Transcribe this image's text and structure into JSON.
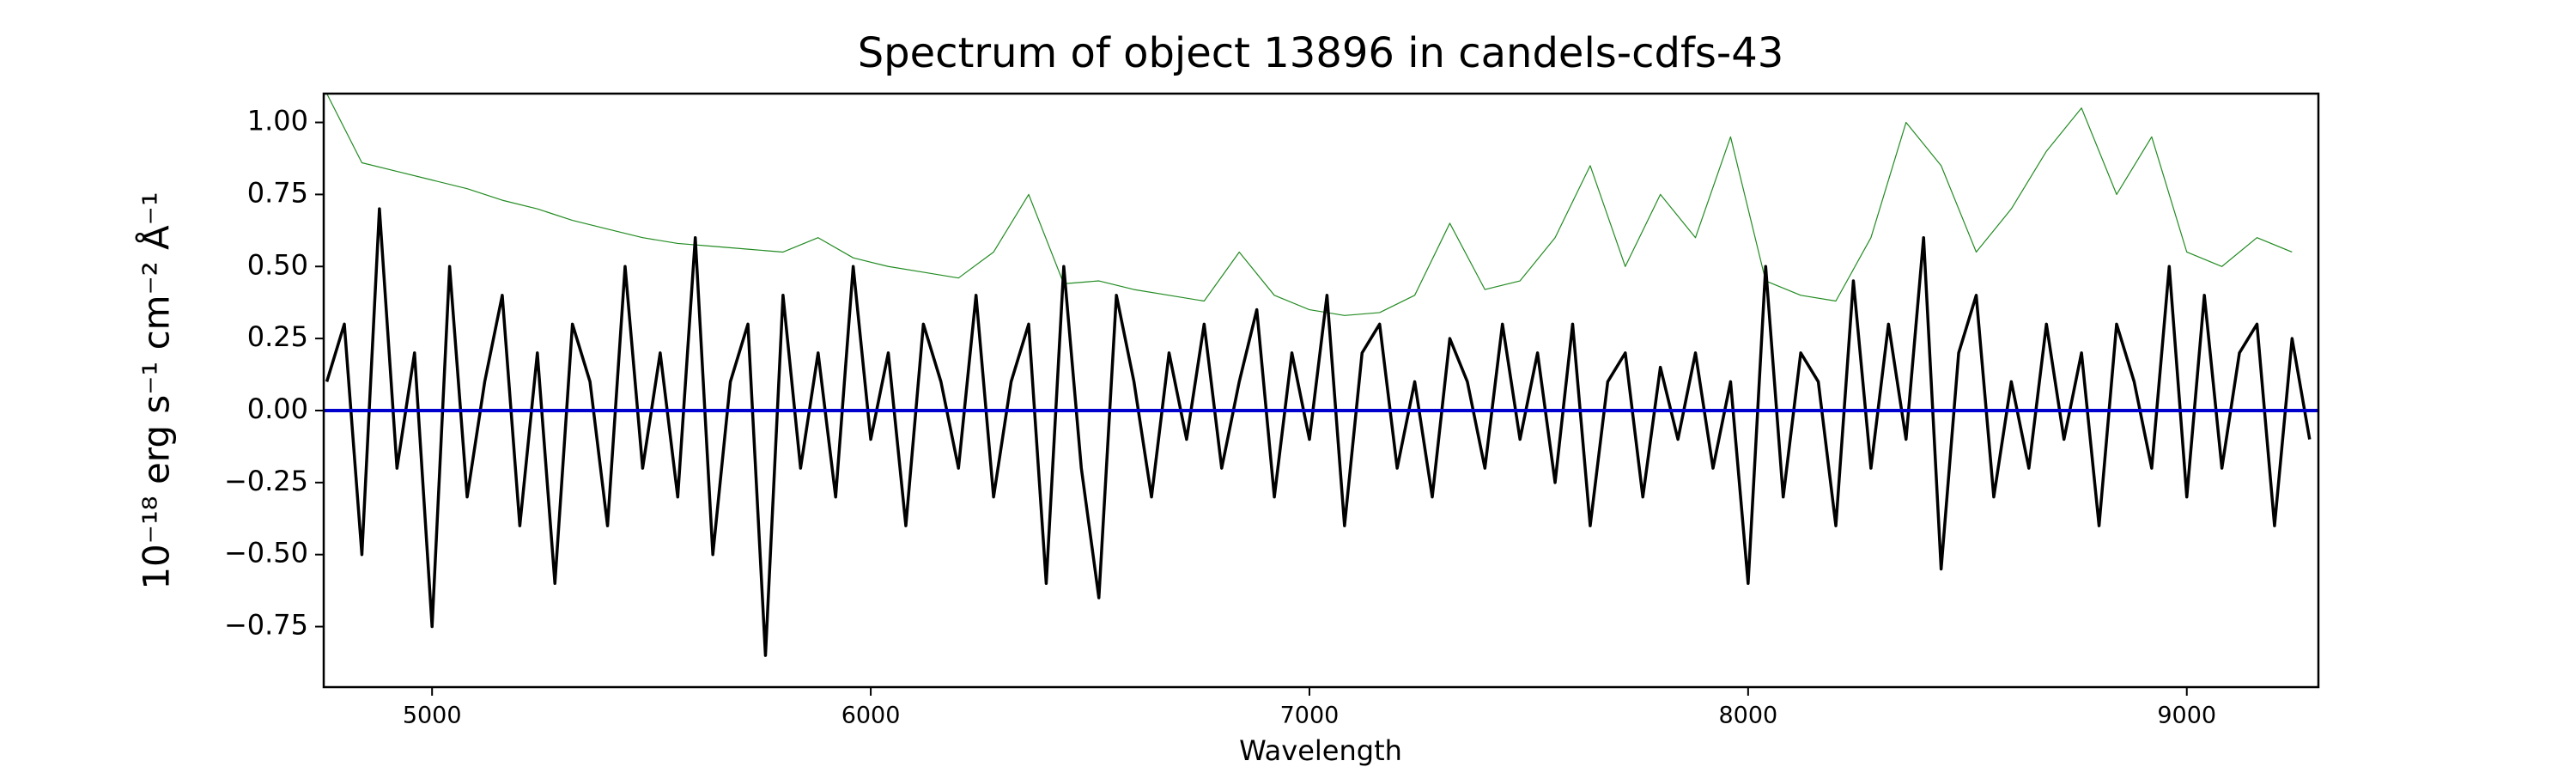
{
  "chart_data": {
    "type": "line",
    "title": "Spectrum of object 13896 in candels-cdfs-43",
    "x_label": "Wavelength",
    "y_label": "10⁻¹⁸ erg s⁻¹ cm⁻² Å⁻¹",
    "xlim": [
      4753,
      9300
    ],
    "ylim": [
      -0.96,
      1.1
    ],
    "xticks": [
      5000,
      6000,
      7000,
      8000,
      9000
    ],
    "yticks": [
      {
        "value": -0.75,
        "label": "−0.75"
      },
      {
        "value": -0.5,
        "label": "−0.50"
      },
      {
        "value": -0.25,
        "label": "−0.25"
      },
      {
        "value": 0,
        "label": "0.00"
      },
      {
        "value": 0.25,
        "label": "0.25"
      },
      {
        "value": 0.5,
        "label": "0.50"
      },
      {
        "value": 0.75,
        "label": "0.75"
      },
      {
        "value": 1,
        "label": "1.00"
      }
    ],
    "grid": false,
    "series": [
      {
        "color": "#228b22",
        "width": 1.2,
        "x": [
          4760,
          4840,
          4920,
          5000,
          5080,
          5160,
          5240,
          5320,
          5400,
          5480,
          5560,
          5640,
          5720,
          5800,
          5880,
          5960,
          6040,
          6120,
          6200,
          6280,
          6360,
          6440,
          6520,
          6600,
          6680,
          6760,
          6840,
          6920,
          7000,
          7080,
          7160,
          7240,
          7320,
          7400,
          7480,
          7560,
          7640,
          7720,
          7800,
          7880,
          7960,
          8040,
          8120,
          8200,
          8280,
          8360,
          8440,
          8520,
          8600,
          8680,
          8760,
          8840,
          8920,
          9000,
          9080,
          9160,
          9240
        ],
        "values": [
          1.1,
          0.86,
          0.83,
          0.8,
          0.77,
          0.73,
          0.7,
          0.66,
          0.63,
          0.6,
          0.58,
          0.57,
          0.56,
          0.55,
          0.6,
          0.53,
          0.5,
          0.48,
          0.46,
          0.55,
          0.75,
          0.44,
          0.45,
          0.42,
          0.4,
          0.38,
          0.55,
          0.4,
          0.35,
          0.33,
          0.34,
          0.4,
          0.65,
          0.42,
          0.45,
          0.6,
          0.85,
          0.5,
          0.75,
          0.6,
          0.95,
          0.45,
          0.4,
          0.38,
          0.6,
          1.0,
          0.85,
          0.55,
          0.7,
          0.9,
          1.05,
          0.75,
          0.95,
          0.55,
          0.5,
          0.6,
          0.55
        ]
      },
      {
        "color": "#000000",
        "width": 3.5,
        "x": [
          4760,
          4800,
          4840,
          4880,
          4920,
          4960,
          5000,
          5040,
          5080,
          5120,
          5160,
          5200,
          5240,
          5280,
          5320,
          5360,
          5400,
          5440,
          5480,
          5520,
          5560,
          5600,
          5640,
          5680,
          5720,
          5760,
          5800,
          5840,
          5880,
          5920,
          5960,
          6000,
          6040,
          6080,
          6120,
          6160,
          6200,
          6240,
          6280,
          6320,
          6360,
          6400,
          6440,
          6480,
          6520,
          6560,
          6600,
          6640,
          6680,
          6720,
          6760,
          6800,
          6840,
          6880,
          6920,
          6960,
          7000,
          7040,
          7080,
          7120,
          7160,
          7200,
          7240,
          7280,
          7320,
          7360,
          7400,
          7440,
          7480,
          7520,
          7560,
          7600,
          7640,
          7680,
          7720,
          7760,
          7800,
          7840,
          7880,
          7920,
          7960,
          8000,
          8040,
          8080,
          8120,
          8160,
          8200,
          8240,
          8280,
          8320,
          8360,
          8400,
          8440,
          8480,
          8520,
          8560,
          8600,
          8640,
          8680,
          8720,
          8760,
          8800,
          8840,
          8880,
          8920,
          8960,
          9000,
          9040,
          9080,
          9120,
          9160,
          9200,
          9240,
          9280
        ],
        "values": [
          0.1,
          0.3,
          -0.5,
          0.7,
          -0.2,
          0.2,
          -0.75,
          0.5,
          -0.3,
          0.1,
          0.4,
          -0.4,
          0.2,
          -0.6,
          0.3,
          0.1,
          -0.4,
          0.5,
          -0.2,
          0.2,
          -0.3,
          0.6,
          -0.5,
          0.1,
          0.3,
          -0.85,
          0.4,
          -0.2,
          0.2,
          -0.3,
          0.5,
          -0.1,
          0.2,
          -0.4,
          0.3,
          0.1,
          -0.2,
          0.4,
          -0.3,
          0.1,
          0.3,
          -0.6,
          0.5,
          -0.2,
          -0.65,
          0.4,
          0.1,
          -0.3,
          0.2,
          -0.1,
          0.3,
          -0.2,
          0.1,
          0.35,
          -0.3,
          0.2,
          -0.1,
          0.4,
          -0.4,
          0.2,
          0.3,
          -0.2,
          0.1,
          -0.3,
          0.25,
          0.1,
          -0.2,
          0.3,
          -0.1,
          0.2,
          -0.25,
          0.3,
          -0.4,
          0.1,
          0.2,
          -0.3,
          0.15,
          -0.1,
          0.2,
          -0.2,
          0.1,
          -0.6,
          0.5,
          -0.3,
          0.2,
          0.1,
          -0.4,
          0.45,
          -0.2,
          0.3,
          -0.1,
          0.6,
          -0.55,
          0.2,
          0.4,
          -0.3,
          0.1,
          -0.2,
          0.3,
          -0.1,
          0.2,
          -0.4,
          0.3,
          0.1,
          -0.2,
          0.5,
          -0.3,
          0.4,
          -0.2,
          0.2,
          0.3,
          -0.4,
          0.25,
          -0.1
        ]
      },
      {
        "color": "#0000cc",
        "width": 4,
        "x": [
          4753,
          9300
        ],
        "values": [
          0,
          0
        ]
      }
    ]
  }
}
